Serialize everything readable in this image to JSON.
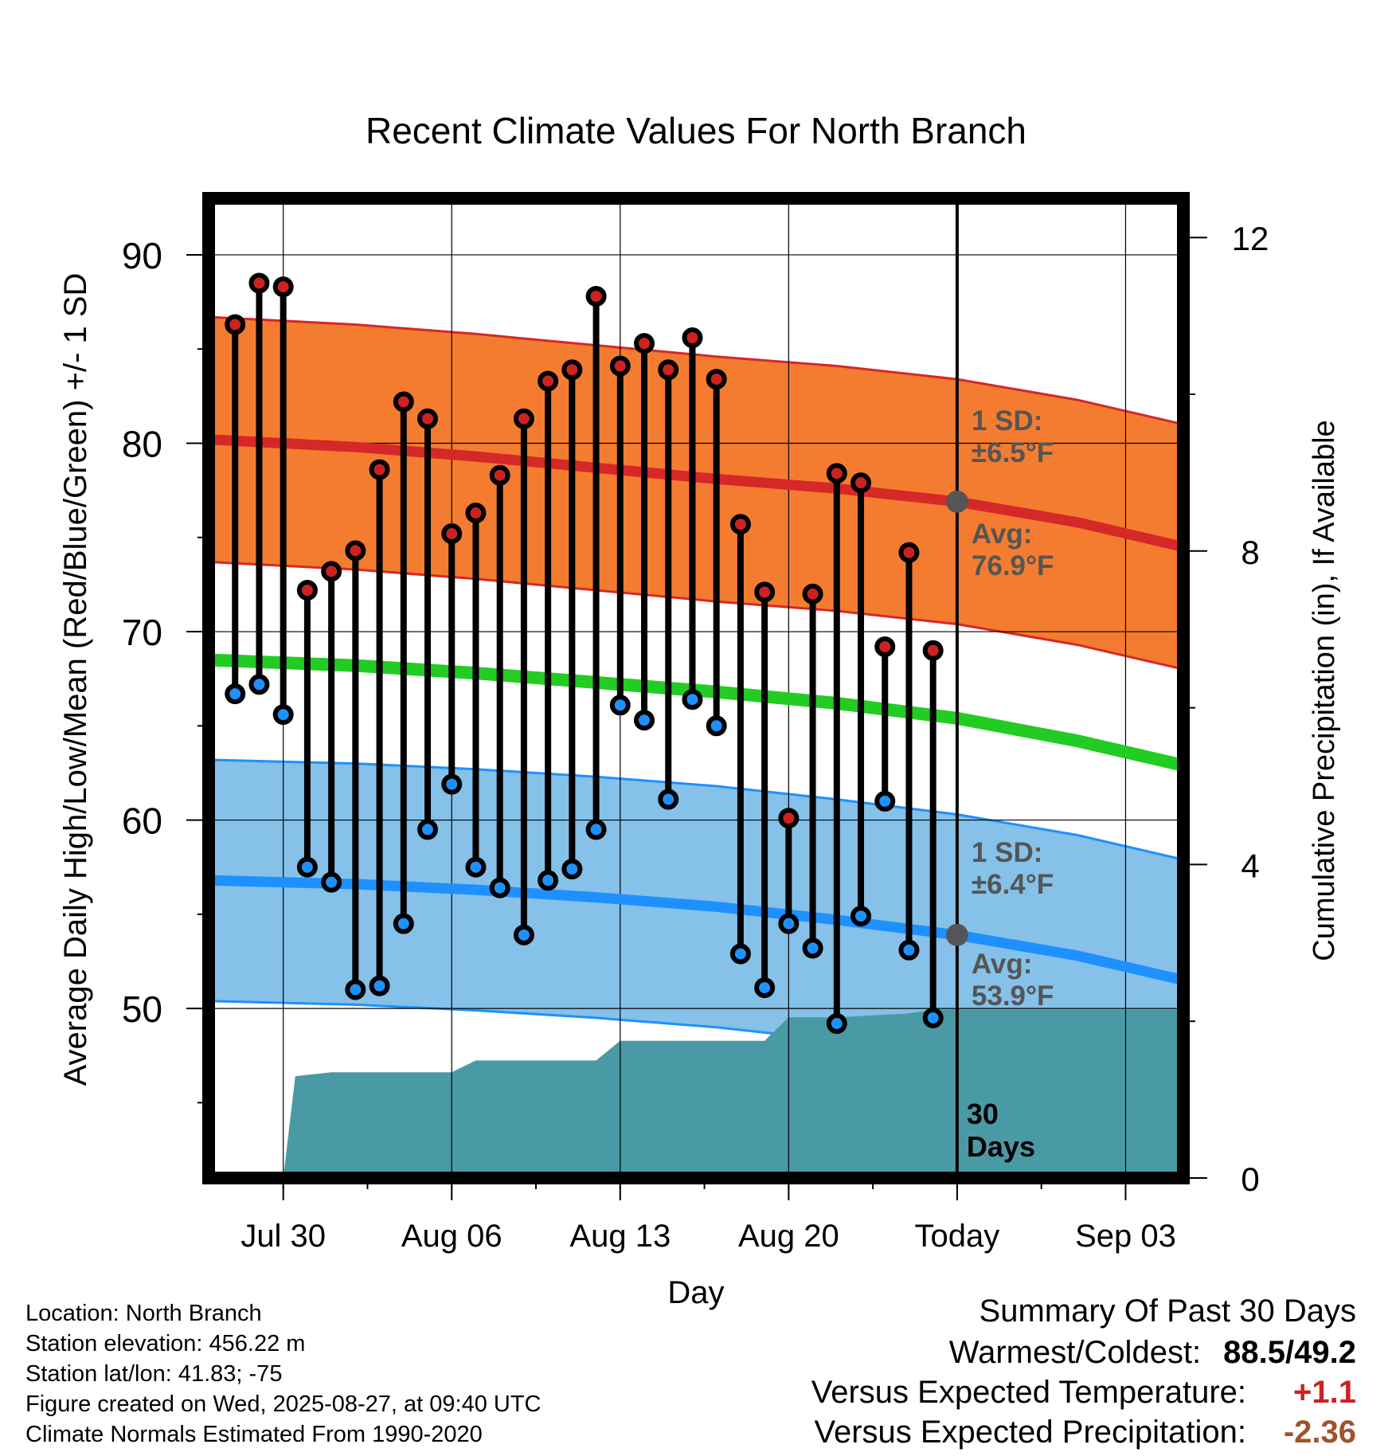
{
  "chart_data": {
    "type": "line",
    "title": "Recent Climate Values For North Branch",
    "xlabel": "Day",
    "ylabel": "Average Daily High/Low/Mean (Red/Blue/Green) +/- 1 SD",
    "y2label": "Cumulative Precipitation (in), If Available",
    "x_ticks": [
      {
        "day": 2,
        "label": "Jul 30"
      },
      {
        "day": 9,
        "label": "Aug 06"
      },
      {
        "day": 16,
        "label": "Aug 13"
      },
      {
        "day": 23,
        "label": "Aug 20"
      },
      {
        "day": 30,
        "label": "Today"
      },
      {
        "day": 37,
        "label": "Sep 03"
      }
    ],
    "xlim": [
      -1.1,
      39.4
    ],
    "ylim": [
      41,
      93
    ],
    "y_ticks": [
      50,
      60,
      70,
      80,
      90
    ],
    "y2lim": [
      0,
      12.5
    ],
    "y2_ticks": [
      0,
      4,
      8,
      12
    ],
    "today_day": 30,
    "today_label_line1": "30",
    "today_label_line2": "Days",
    "normals": {
      "days": [
        -1.1,
        5,
        10,
        15,
        20,
        25,
        30,
        35,
        39.4
      ],
      "high_avg": [
        80.2,
        79.8,
        79.3,
        78.7,
        78.1,
        77.6,
        76.9,
        75.8,
        74.5
      ],
      "high_sd": 6.5,
      "low_avg": [
        56.8,
        56.6,
        56.3,
        55.9,
        55.4,
        54.7,
        53.9,
        52.8,
        51.5
      ],
      "low_sd": 6.4,
      "mean_avg": [
        68.5,
        68.2,
        67.8,
        67.3,
        66.8,
        66.2,
        65.4,
        64.2,
        62.9
      ]
    },
    "series": [
      {
        "name": "High",
        "color": "#cc2222",
        "values": [
          86.3,
          88.5,
          88.3,
          72.2,
          73.2,
          74.3,
          78.6,
          82.2,
          81.3,
          75.2,
          76.3,
          78.3,
          81.3,
          83.3,
          83.9,
          87.8,
          84.1,
          85.3,
          83.9,
          85.6,
          83.4,
          75.7,
          72.1,
          60.1,
          72.0,
          78.4,
          77.9,
          69.2,
          74.2,
          69.0
        ]
      },
      {
        "name": "Low",
        "color": "#1e90ff",
        "values": [
          66.7,
          67.2,
          65.6,
          57.5,
          56.7,
          51.0,
          51.2,
          54.5,
          59.5,
          61.9,
          57.5,
          56.4,
          53.9,
          56.8,
          57.4,
          59.5,
          66.1,
          65.3,
          61.1,
          66.4,
          65.0,
          52.9,
          51.1,
          54.5,
          53.2,
          49.2,
          54.9,
          61.0,
          53.1,
          49.5
        ]
      }
    ],
    "day_range": [
      0,
      29
    ],
    "annotations": {
      "high_sd_line1": "1 SD:",
      "high_sd_line2": "±6.5°F",
      "high_avg_line1": "Avg:",
      "high_avg_line2": "76.9°F",
      "low_sd_line1": "1 SD:",
      "low_sd_line2": "±6.4°F",
      "low_avg_line1": "Avg:",
      "low_avg_line2": "53.9°F"
    },
    "precip_cumulative": {
      "days": [
        1.0,
        2.0,
        2.5,
        4.0,
        8.0,
        9.0,
        10.0,
        15.0,
        16.0,
        21.0,
        22.0,
        23.0,
        25.0,
        28.0,
        29.0,
        39.4
      ],
      "values": [
        0.0,
        0.0,
        1.3,
        1.35,
        1.35,
        1.35,
        1.5,
        1.5,
        1.75,
        1.75,
        1.75,
        2.05,
        2.05,
        2.1,
        2.15,
        2.15
      ]
    },
    "colors": {
      "high_band": "#f47c30",
      "high_line": "#d62828",
      "low_band": "#85c1e8",
      "low_line": "#1e90ff",
      "mean_line": "#22cc22",
      "precip": "#4a9aa5",
      "annotation": "#555555"
    },
    "grid": true
  },
  "info": {
    "location": "Location: North Branch",
    "elevation": "Station elevation: 456.22 m",
    "latlon": "Station lat/lon: 41.83; -75",
    "created": "Figure created on Wed, 2025-08-27, at 09:40 UTC",
    "normals": "Climate Normals Estimated From 1990-2020"
  },
  "summary": {
    "title": "Summary Of Past 30 Days",
    "warmest_label": "Warmest/Coldest:",
    "warmest_value": "88.5/49.2",
    "temp_label": "Versus Expected Temperature:",
    "temp_value": "+1.1",
    "temp_color": "#cc2222",
    "precip_label": "Versus Expected Precipitation:",
    "precip_value": "-2.36",
    "precip_color": "#a0522d"
  }
}
